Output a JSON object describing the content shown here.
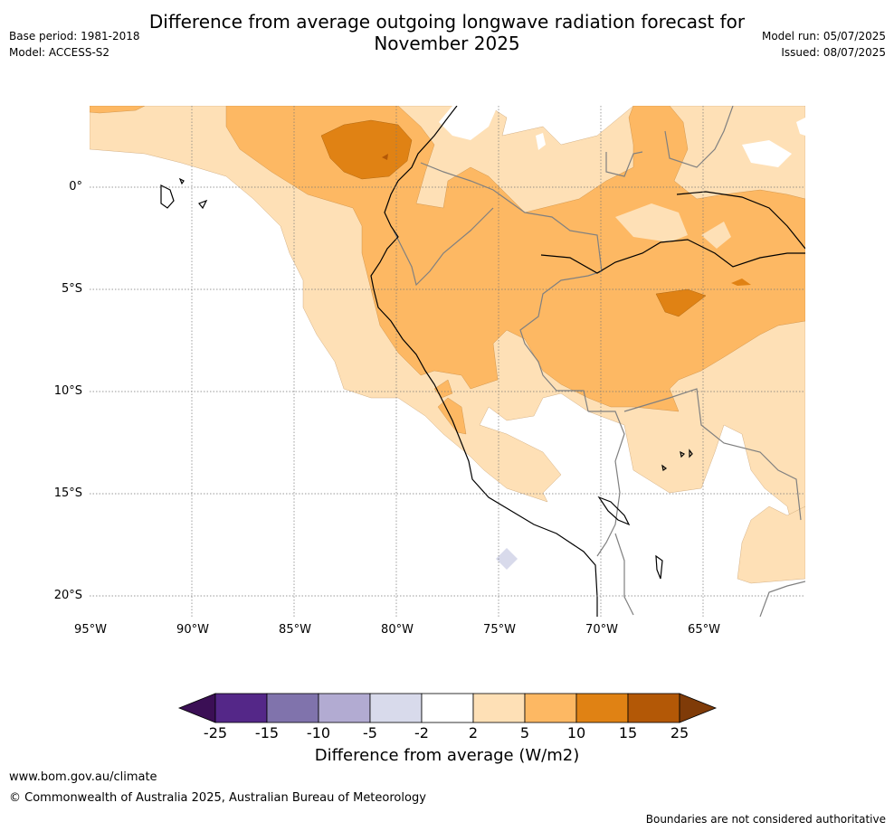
{
  "title": "Difference from average outgoing longwave radiation forecast for November 2025",
  "title_line1": "Difference from average outgoing longwave radiation forecast for",
  "title_line2": "November 2025",
  "meta_left": {
    "base_period": "Base period: 1981-2018",
    "model": "Model: ACCESS-S2"
  },
  "meta_right": {
    "model_run": "Model run: 05/07/2025",
    "issued": "Issued: 08/07/2025"
  },
  "latitude_labels": [
    "0°",
    "5°S",
    "10°S",
    "15°S",
    "20°S"
  ],
  "longitude_labels": [
    "95°W",
    "90°W",
    "85°W",
    "80°W",
    "75°W",
    "70°W",
    "65°W"
  ],
  "colorbar": {
    "title": "Difference from average (W/m2)",
    "tick_labels": [
      "-25",
      "-15",
      "-10",
      "-5",
      "-2",
      "2",
      "5",
      "10",
      "15",
      "25"
    ],
    "colors": [
      "#3b0f55",
      "#542788",
      "#8073ac",
      "#b2abd2",
      "#d8daeb",
      "#ffffff",
      "#fee0b6",
      "#fdb863",
      "#e08214",
      "#b35806",
      "#7f3b08"
    ]
  },
  "footer": {
    "url": "www.bom.gov.au/climate",
    "copyright": "© Commonwealth of Australia 2025, Australian Bureau of Meteorology",
    "note": "Boundaries are not considered authoritative"
  }
}
